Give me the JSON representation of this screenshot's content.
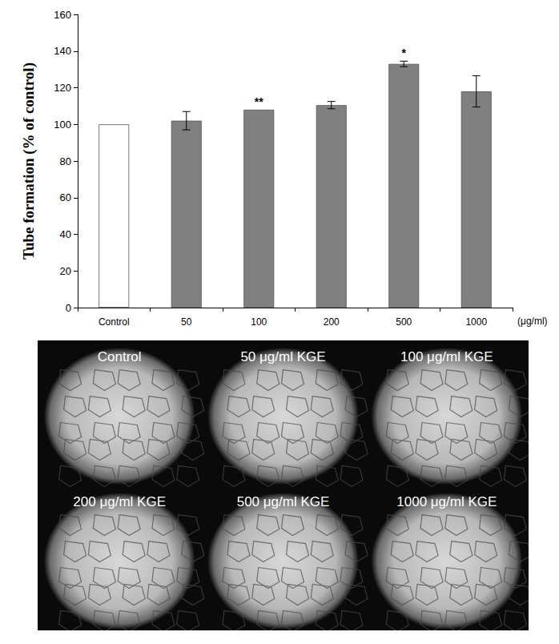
{
  "chart_data": {
    "type": "bar",
    "y_label": "Tube formation (% of control)",
    "x_unit": "(μg/ml)",
    "categories": [
      "Control",
      "50",
      "100",
      "200",
      "500",
      "1000"
    ],
    "values": [
      100,
      102,
      108,
      110.5,
      133,
      118
    ],
    "errors": [
      0,
      5,
      0,
      2,
      1.5,
      8.5
    ],
    "significance": [
      null,
      null,
      "**",
      null,
      "*",
      null
    ],
    "colors": [
      "#ffffff",
      "#808080",
      "#808080",
      "#808080",
      "#808080",
      "#808080"
    ],
    "ylim": [
      0,
      160
    ],
    "yticks": [
      0,
      20,
      40,
      60,
      80,
      100,
      120,
      140,
      160
    ],
    "grid": false,
    "micrographs": [
      "Control",
      "50 μg/ml KGE",
      "100 μg/ml KGE",
      "200 μg/ml KGE",
      "500 μg/ml KGE",
      "1000 μg/ml KGE"
    ]
  }
}
